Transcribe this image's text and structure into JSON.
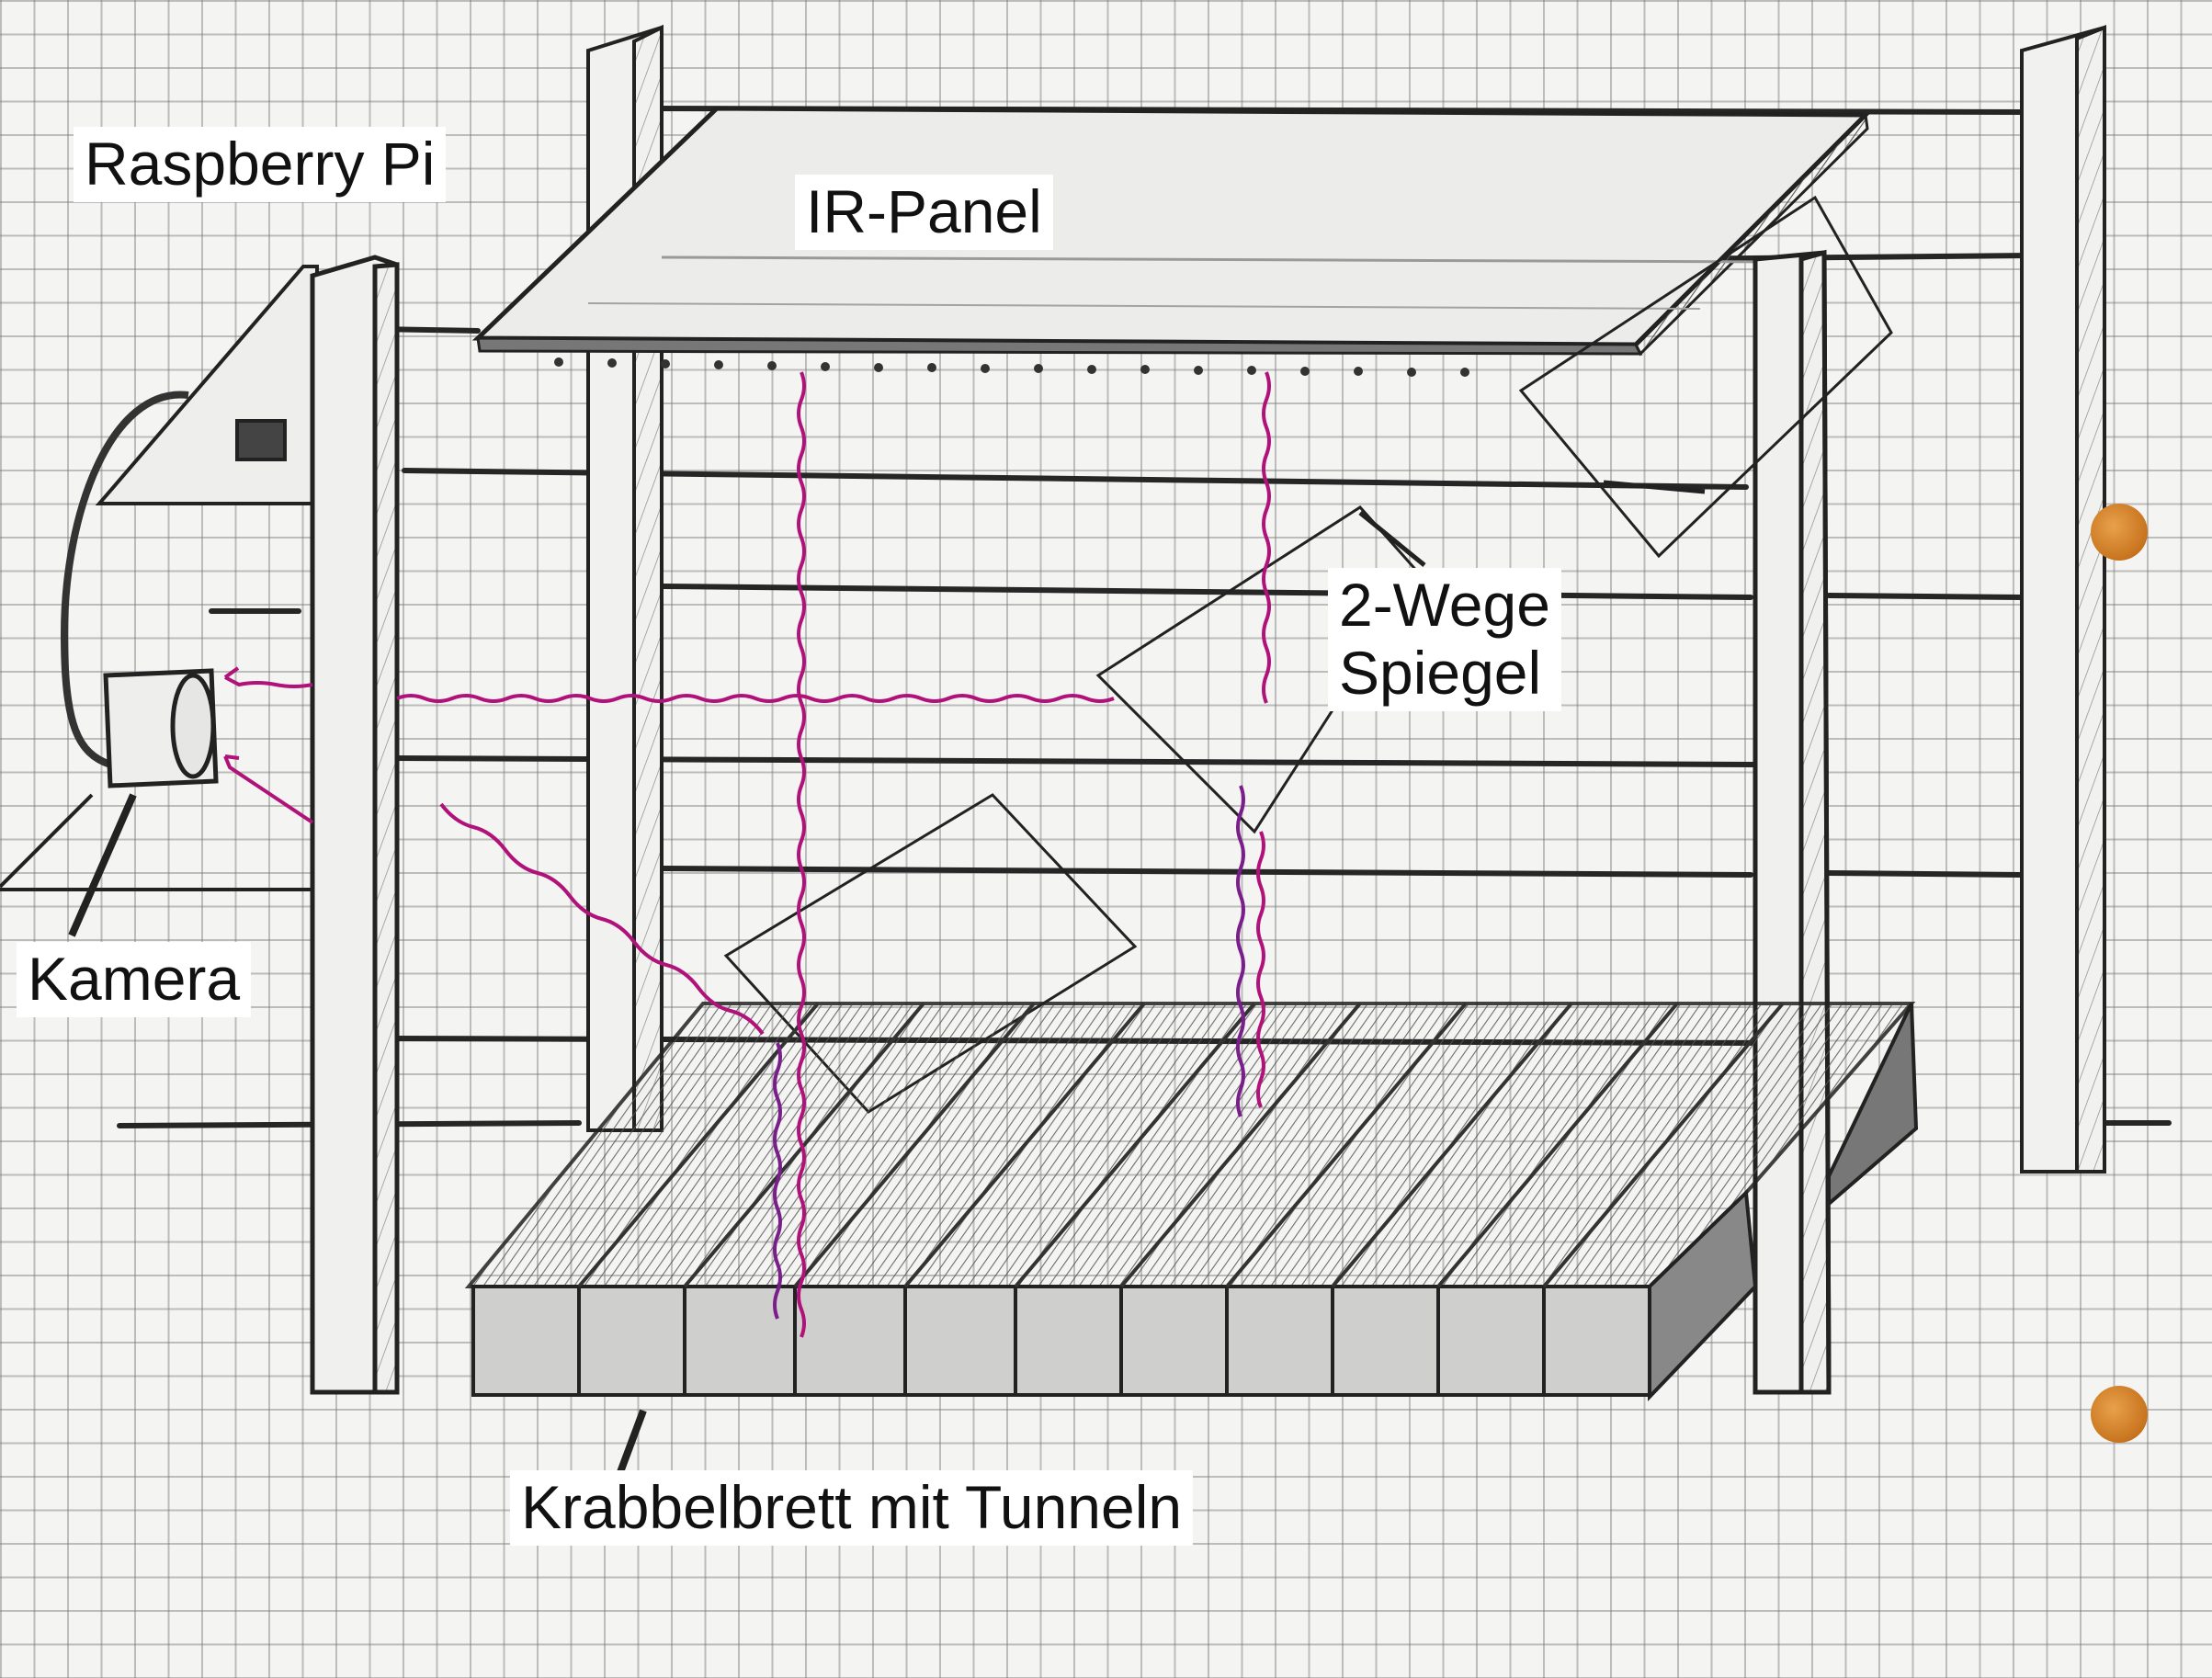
{
  "labels": {
    "raspberry_pi": "Raspberry Pi",
    "ir_panel": "IR-Panel",
    "mirror_line1": "2-Wege",
    "mirror_line2": "Spiegel",
    "camera": "Kamera",
    "crawl_board": "Krabbelbrett mit Tunneln"
  },
  "colors": {
    "pencil": "#2a2a2a",
    "ir_ray": "#b0127a",
    "ir_ray_dark": "#7a1e8c",
    "punch_hole": "#d4842c",
    "paper": "#f4f4f2"
  }
}
